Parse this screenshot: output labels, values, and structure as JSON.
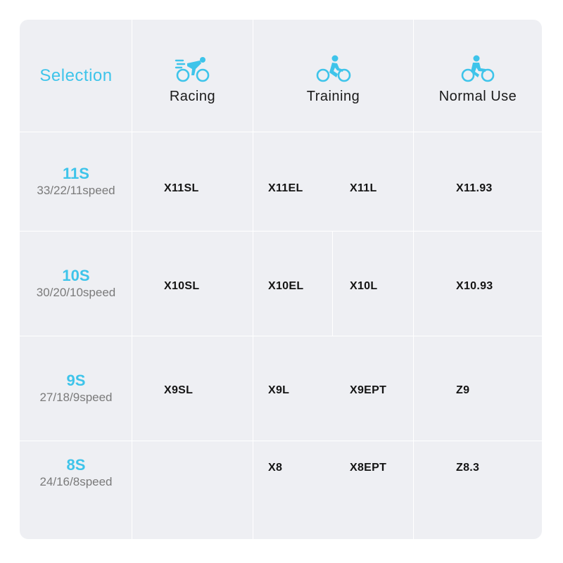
{
  "table": {
    "corner_label": "Selection",
    "columns": [
      {
        "label": "Racing",
        "icon": "racing-cyclist-icon"
      },
      {
        "label": "Training",
        "icon": "training-cyclist-icon"
      },
      {
        "label": "Normal Use",
        "icon": "casual-cyclist-icon"
      }
    ],
    "rows": [
      {
        "speed": "11S",
        "speed_sub": "33/22/11speed",
        "racing": "X11SL",
        "training_1": "X11EL",
        "training_2": "X11L",
        "normal": "X11.93"
      },
      {
        "speed": "10S",
        "speed_sub": "30/20/10speed",
        "racing": "X10SL",
        "training_1": "X10EL",
        "training_2": "X10L",
        "normal": "X10.93"
      },
      {
        "speed": "9S",
        "speed_sub": "27/18/9speed",
        "racing": "X9SL",
        "training_1": "X9L",
        "training_2": "X9EPT",
        "normal": "Z9"
      },
      {
        "speed": "8S",
        "speed_sub": "24/16/8speed",
        "racing": "",
        "training_1": "X8",
        "training_2": "X8EPT",
        "normal": "Z8.3"
      }
    ]
  },
  "colors": {
    "accent": "#3ec4ea",
    "panel_bg": "#eeeff3",
    "grid_line": "#ffffff",
    "cell_text": "#141414",
    "sub_text": "#7a7a7a"
  }
}
